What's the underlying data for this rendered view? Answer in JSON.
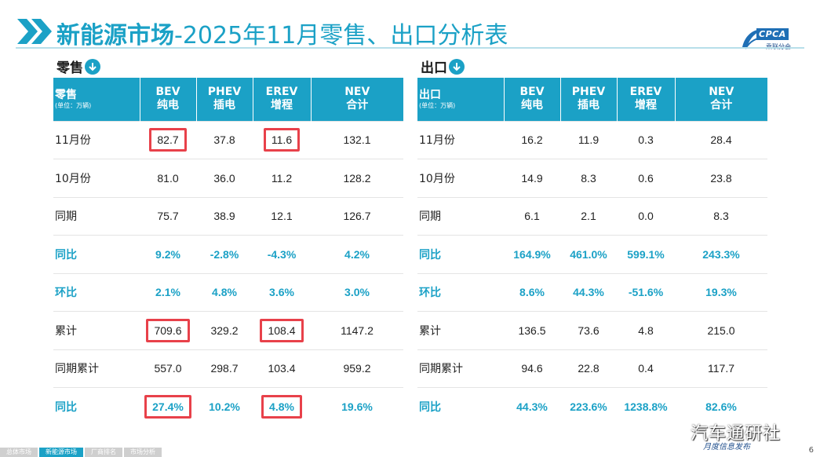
{
  "header": {
    "title_bold": "新能源市场",
    "title_rest": "-2025年11月零售、出口分析表",
    "logo_text": "CPCA",
    "logo_sub": "乘联分会"
  },
  "retail": {
    "section_label": "零售",
    "header_label": "零售",
    "unit": "(单位：万辆)",
    "columns": [
      {
        "code": "BEV",
        "name": "纯电"
      },
      {
        "code": "PHEV",
        "name": "插电"
      },
      {
        "code": "EREV",
        "name": "增程"
      },
      {
        "code": "NEV",
        "name": "合计"
      }
    ],
    "rows": [
      {
        "label": "11月份",
        "values": [
          "82.7",
          "37.8",
          "11.6",
          "132.1"
        ]
      },
      {
        "label": "10月份",
        "values": [
          "81.0",
          "36.0",
          "11.2",
          "128.2"
        ]
      },
      {
        "label": "同期",
        "values": [
          "75.7",
          "38.9",
          "12.1",
          "126.7"
        ]
      },
      {
        "label": "同比",
        "values": [
          "9.2%",
          "-2.8%",
          "-4.3%",
          "4.2%"
        ]
      },
      {
        "label": "环比",
        "values": [
          "2.1%",
          "4.8%",
          "3.6%",
          "3.0%"
        ]
      },
      {
        "label": "累计",
        "values": [
          "709.6",
          "329.2",
          "108.4",
          "1147.2"
        ]
      },
      {
        "label": "同期累计",
        "values": [
          "557.0",
          "298.7",
          "103.4",
          "959.2"
        ]
      },
      {
        "label": "同比",
        "values": [
          "27.4%",
          "10.2%",
          "4.8%",
          "19.6%"
        ]
      }
    ]
  },
  "export": {
    "section_label": "出口",
    "header_label": "出口",
    "unit": "(单位：万辆)",
    "columns": [
      {
        "code": "BEV",
        "name": "纯电"
      },
      {
        "code": "PHEV",
        "name": "插电"
      },
      {
        "code": "EREV",
        "name": "增程"
      },
      {
        "code": "NEV",
        "name": "合计"
      }
    ],
    "rows": [
      {
        "label": "11月份",
        "values": [
          "16.2",
          "11.9",
          "0.3",
          "28.4"
        ]
      },
      {
        "label": "10月份",
        "values": [
          "14.9",
          "8.3",
          "0.6",
          "23.8"
        ]
      },
      {
        "label": "同期",
        "values": [
          "6.1",
          "2.1",
          "0.0",
          "8.3"
        ]
      },
      {
        "label": "同比",
        "values": [
          "164.9%",
          "461.0%",
          "599.1%",
          "243.3%"
        ]
      },
      {
        "label": "环比",
        "values": [
          "8.6%",
          "44.3%",
          "-51.6%",
          "19.3%"
        ]
      },
      {
        "label": "累计",
        "values": [
          "136.5",
          "73.6",
          "4.8",
          "215.0"
        ]
      },
      {
        "label": "同期累计",
        "values": [
          "94.6",
          "22.8",
          "0.4",
          "117.7"
        ]
      },
      {
        "label": "同比",
        "values": [
          "44.3%",
          "223.6%",
          "1238.8%",
          "82.6%"
        ]
      }
    ]
  },
  "footer": {
    "tabs": [
      "总体市场",
      "新能源市场",
      "厂商排名",
      "市场分析"
    ],
    "active_tab": "新能源市场",
    "page_number": "6",
    "signature": "汽车通研社",
    "tagline": "月度信息发布"
  },
  "colors": {
    "accent": "#1ba1c6",
    "highlight_box": "#e8414a"
  }
}
